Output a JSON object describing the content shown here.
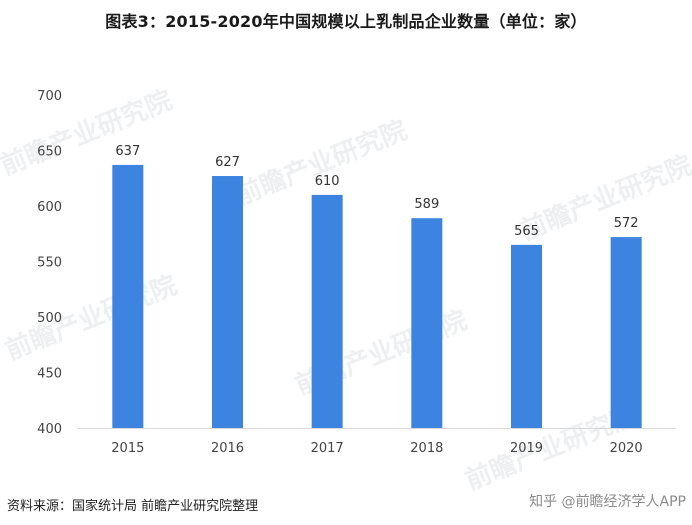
{
  "title": "图表3：2015-2020年中国规模以上乳制品企业数量（单位：家）",
  "source": "资料来源：国家统计局 前瞻产业研究院整理",
  "watermark_text": "前瞻产业研究院",
  "platform_mark": "知乎 @前瞻经济学人APP",
  "colors": {
    "bar": "#3d83e0",
    "axis": "#d9d9d9",
    "watermark": "#cfd3d8"
  },
  "chart_data": {
    "type": "bar",
    "categories": [
      "2015",
      "2016",
      "2017",
      "2018",
      "2019",
      "2020"
    ],
    "values": [
      637,
      627,
      610,
      589,
      565,
      572
    ],
    "title": "图表3：2015-2020年中国规模以上乳制品企业数量（单位：家）",
    "xlabel": "",
    "ylabel": "",
    "ylim": [
      400,
      700
    ],
    "yticks": [
      400,
      450,
      500,
      550,
      600,
      650,
      700
    ],
    "grid": false,
    "data_labels": true,
    "legend": "none"
  }
}
